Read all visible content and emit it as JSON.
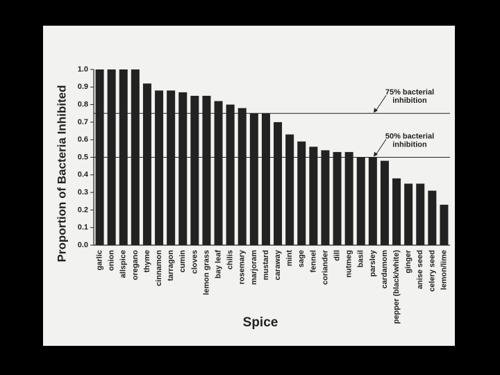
{
  "chart_data": {
    "type": "bar",
    "x_label": "Spice",
    "y_label": "Proportion of Bacteria Inhibited",
    "categories": [
      "garlic",
      "onion",
      "allspice",
      "oregano",
      "thyme",
      "cinnamon",
      "tarragon",
      "cumin",
      "cloves",
      "lemon grass",
      "bay leaf",
      "chilis",
      "rosemary",
      "marjoram",
      "mustard",
      "caraway",
      "mint",
      "sage",
      "fennel",
      "coriander",
      "dill",
      "nutmeg",
      "basil",
      "parsley",
      "cardamom",
      "pepper (black/white)",
      "ginger",
      "anise seed",
      "celery seed",
      "lemon/lime"
    ],
    "values": [
      1.0,
      1.0,
      1.0,
      1.0,
      0.92,
      0.88,
      0.88,
      0.87,
      0.85,
      0.85,
      0.82,
      0.8,
      0.78,
      0.75,
      0.75,
      0.7,
      0.63,
      0.59,
      0.56,
      0.54,
      0.53,
      0.53,
      0.5,
      0.5,
      0.48,
      0.38,
      0.35,
      0.35,
      0.31,
      0.23
    ],
    "color": "#222222",
    "ylim": [
      0,
      1.0
    ],
    "yticks": [
      {
        "value": 0,
        "label": "0.0"
      },
      0.1,
      0.2,
      0.3,
      0.4,
      0.5,
      0.6,
      0.7,
      0.8,
      0.9,
      {
        "value": 1,
        "label": "1.0"
      }
    ],
    "reference_lines": [
      {
        "value": 0.75,
        "label": [
          "75%  bacterial",
          "inhibition"
        ]
      },
      {
        "value": 0.5,
        "label": [
          "50%  bacterial",
          "inhibition"
        ]
      }
    ]
  }
}
